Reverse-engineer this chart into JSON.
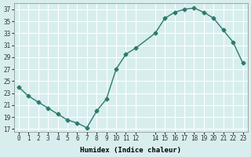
{
  "x": [
    0,
    1,
    2,
    3,
    4,
    5,
    6,
    7,
    8,
    9,
    10,
    11,
    12,
    14,
    15,
    16,
    17,
    18,
    19,
    20,
    21,
    22,
    23
  ],
  "y": [
    24,
    22.5,
    21.5,
    20.5,
    19.5,
    18.5,
    18,
    17.2,
    20,
    22,
    27,
    29.5,
    30.5,
    33,
    35.5,
    36.5,
    37,
    37.2,
    36.5,
    35.5,
    33.5,
    31.5,
    28
  ],
  "line_color": "#2d7a6e",
  "marker_color": "#2d7a6e",
  "bg_color": "#d8eeee",
  "grid_color": "#ffffff",
  "xlabel": "Humidex (Indice chaleur)",
  "yticks": [
    17,
    19,
    21,
    23,
    25,
    27,
    29,
    31,
    33,
    35,
    37
  ],
  "xticks": [
    0,
    1,
    2,
    3,
    4,
    5,
    6,
    7,
    8,
    9,
    10,
    11,
    12,
    14,
    15,
    16,
    17,
    18,
    19,
    20,
    21,
    22,
    23
  ],
  "xlim": [
    -0.5,
    23.5
  ],
  "ylim": [
    16.5,
    38
  ]
}
